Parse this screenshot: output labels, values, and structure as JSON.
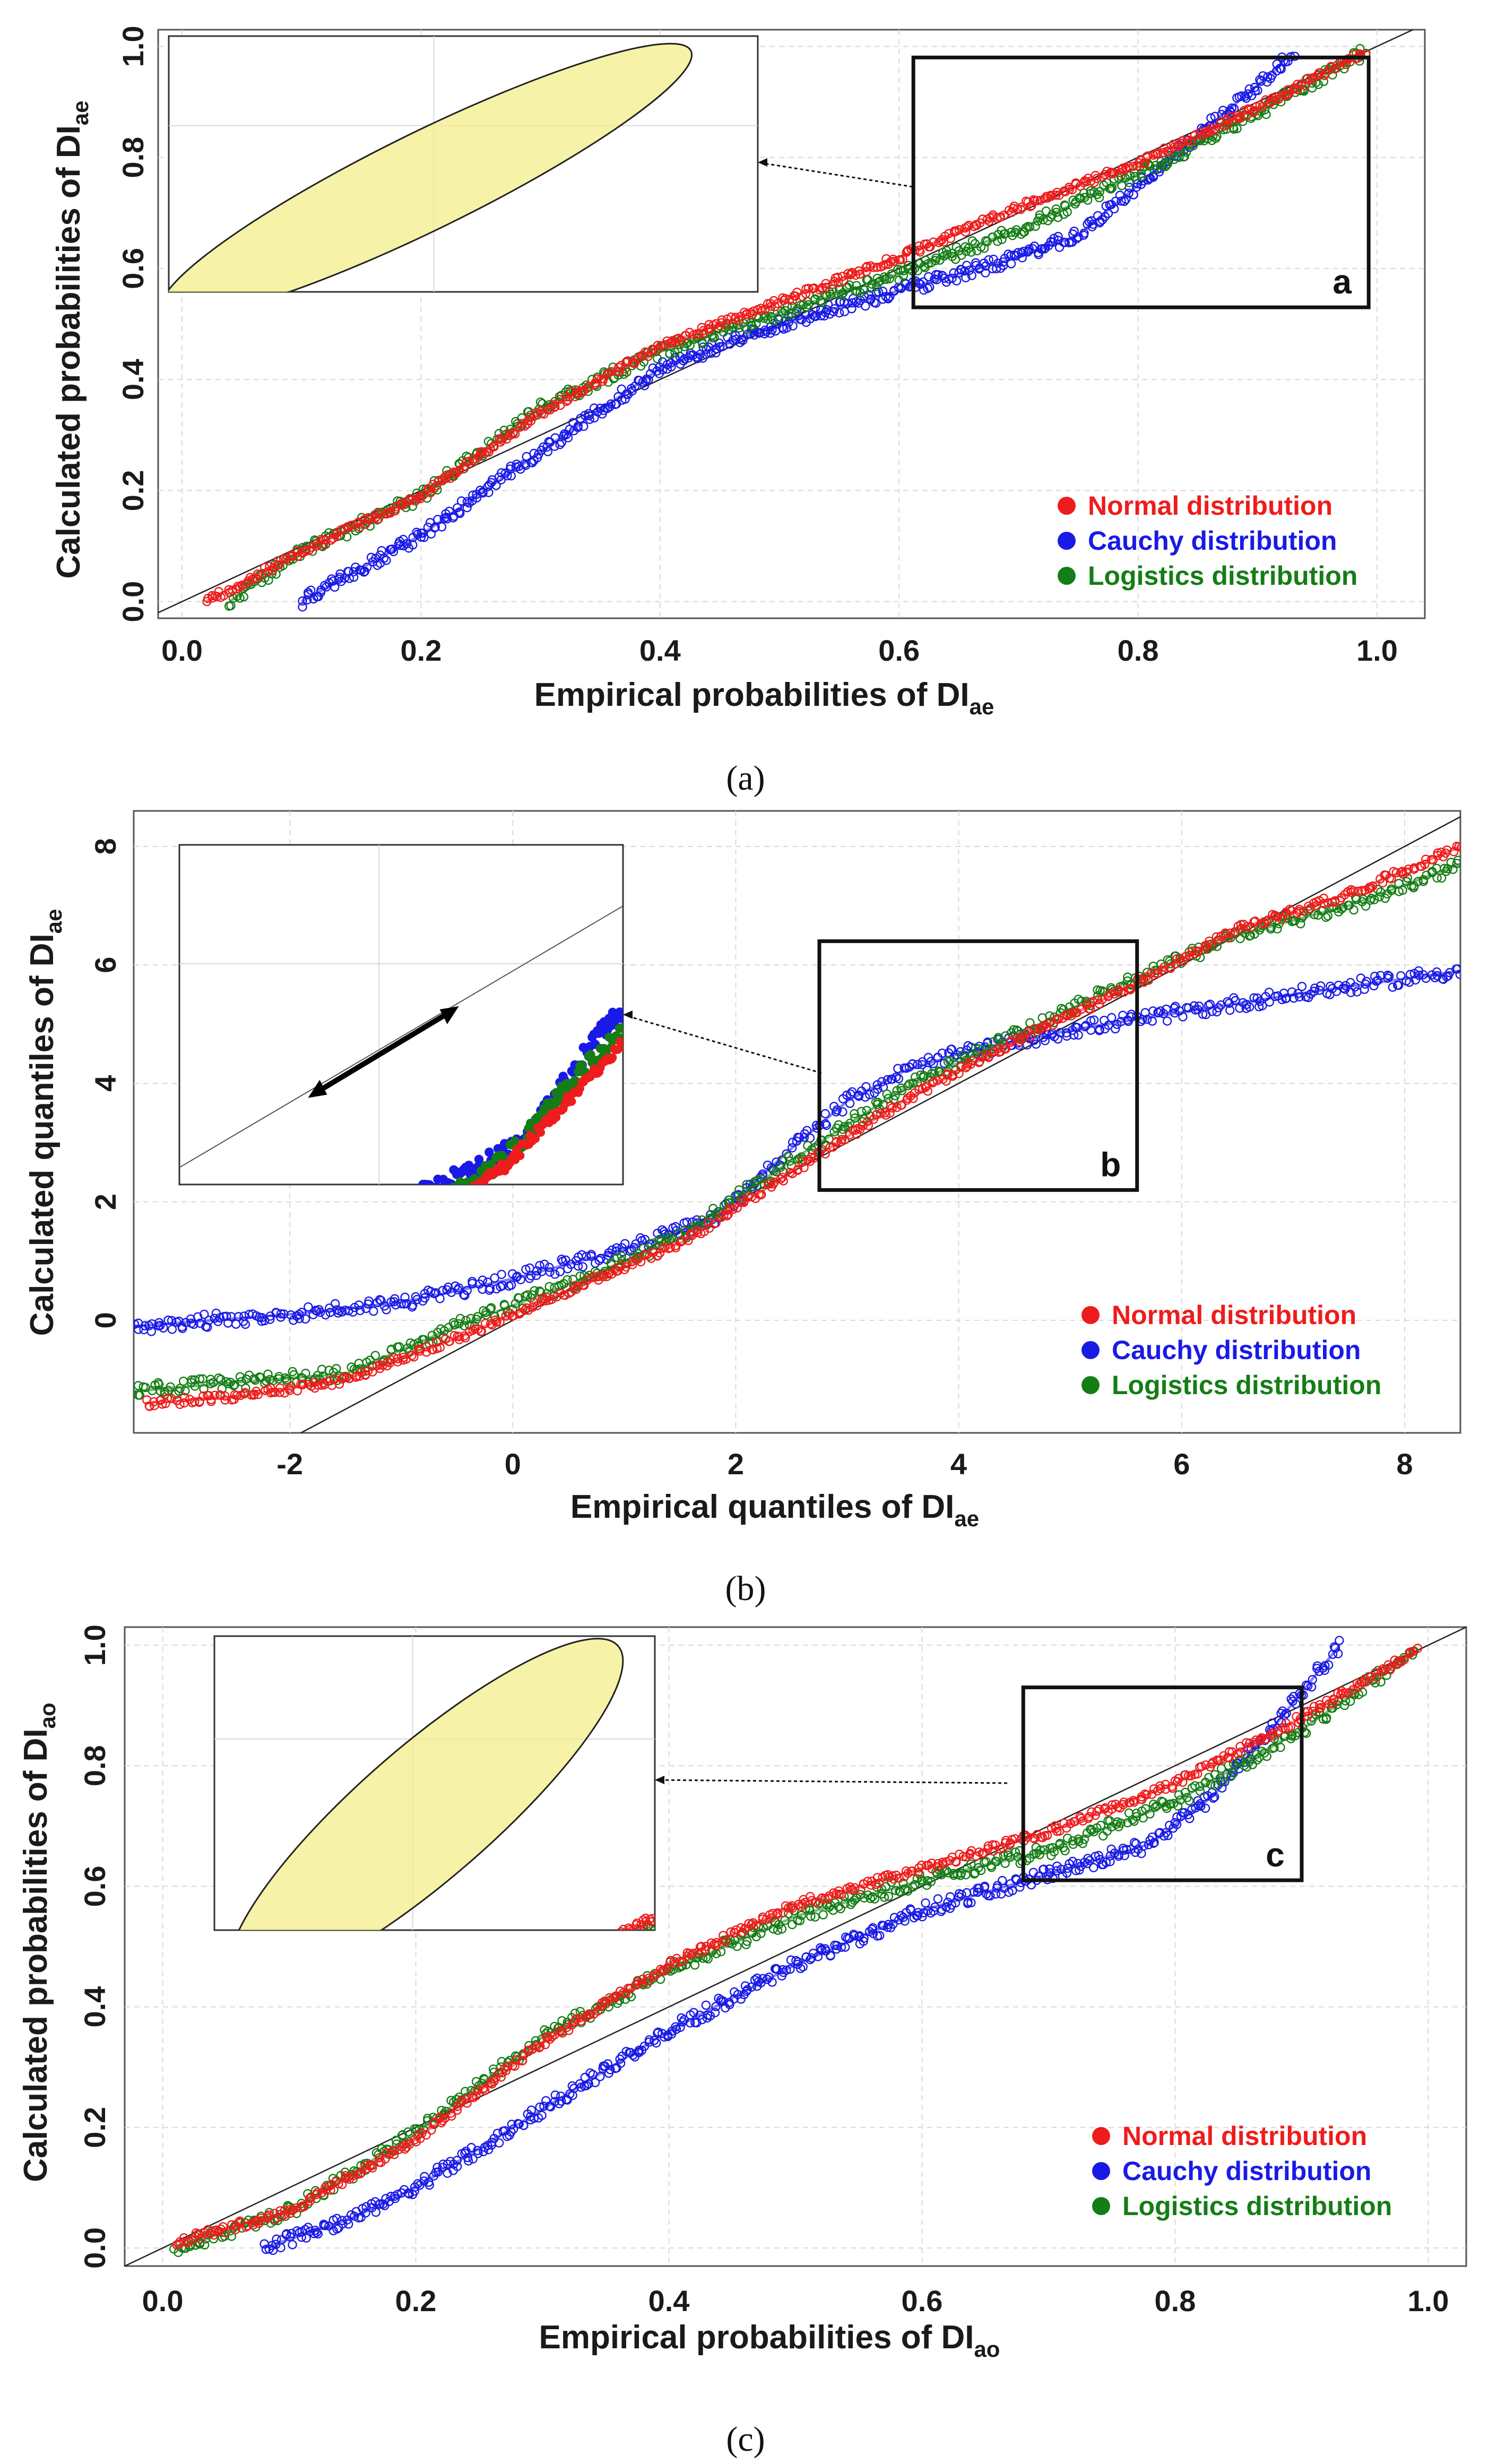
{
  "colors": {
    "normal": "#ee1c1c",
    "cauchy": "#1a1ae6",
    "logistics": "#157d15",
    "ellipse": "#f3ee8a",
    "grid": "#d9d9d9"
  },
  "chart_data": [
    {
      "type": "scatter",
      "panel": "(a)",
      "xlabel_main": "Empirical probabilities of DI",
      "xlabel_sub": "ae",
      "ylabel_main": "Calculated probabilities of DI",
      "ylabel_sub": "ae",
      "xlim": [
        -0.02,
        1.04
      ],
      "ylim": [
        -0.03,
        1.03
      ],
      "xticks": [
        0.0,
        0.2,
        0.4,
        0.6,
        0.8,
        1.0
      ],
      "xtick_labels": [
        "0.0",
        "0.2",
        "0.4",
        "0.6",
        "0.8",
        "1.0"
      ],
      "yticks": [
        0.0,
        0.2,
        0.4,
        0.6,
        0.8,
        1.0
      ],
      "ytick_labels": [
        "0.0",
        "0.2",
        "0.4",
        "0.6",
        "0.8",
        "1.0"
      ],
      "reference_line": "y = x",
      "box_label": "a",
      "box_data": {
        "x0": 0.612,
        "x1": 0.993,
        "y0": 0.53,
        "y1": 0.98
      },
      "legend": [
        "Normal distribution",
        "Cauchy distribution",
        "Logistics distribution"
      ],
      "legend_position": "bottom-right",
      "series": [
        {
          "name": "Normal distribution",
          "key": "normal",
          "x": [
            0.02,
            0.1,
            0.2,
            0.3,
            0.4,
            0.5,
            0.6,
            0.7,
            0.8,
            0.9,
            0.99
          ],
          "y": [
            0.0,
            0.09,
            0.19,
            0.34,
            0.46,
            0.54,
            0.62,
            0.71,
            0.79,
            0.89,
            0.99
          ]
        },
        {
          "name": "Cauchy distribution",
          "key": "cauchy",
          "x": [
            0.1,
            0.15,
            0.2,
            0.3,
            0.4,
            0.5,
            0.6,
            0.7,
            0.75,
            0.8,
            0.85,
            0.9,
            0.93
          ],
          "y": [
            0.0,
            0.06,
            0.12,
            0.27,
            0.42,
            0.5,
            0.56,
            0.62,
            0.66,
            0.75,
            0.84,
            0.93,
            0.99
          ]
        },
        {
          "name": "Logistics distribution",
          "key": "logistics",
          "x": [
            0.04,
            0.1,
            0.2,
            0.3,
            0.4,
            0.5,
            0.6,
            0.7,
            0.8,
            0.9,
            0.99
          ],
          "y": [
            0.0,
            0.09,
            0.19,
            0.35,
            0.45,
            0.52,
            0.59,
            0.67,
            0.77,
            0.88,
            0.99
          ]
        }
      ]
    },
    {
      "type": "scatter",
      "panel": "(b)",
      "xlabel_main": "Empirical quantiles of DI",
      "xlabel_sub": "ae",
      "ylabel_main": "Calculated quantiles of DI",
      "ylabel_sub": "ae",
      "xlim": [
        -3.4,
        8.5
      ],
      "ylim": [
        -1.9,
        8.6
      ],
      "xticks": [
        -2,
        0,
        2,
        4,
        6,
        8
      ],
      "xtick_labels": [
        "-2",
        "0",
        "2",
        "4",
        "6",
        "8"
      ],
      "yticks": [
        0,
        2,
        4,
        6,
        8
      ],
      "ytick_labels": [
        "0",
        "2",
        "4",
        "6",
        "8"
      ],
      "reference_line": "y = x",
      "box_label": "b",
      "box_data": {
        "x0": 2.75,
        "x1": 5.6,
        "y0": 2.2,
        "y1": 6.4
      },
      "legend": [
        "Normal distribution",
        "Cauchy distribution",
        "Logistics distribution"
      ],
      "legend_position": "bottom-right",
      "series": [
        {
          "name": "Normal distribution",
          "key": "normal",
          "x": [
            -3.3,
            -2.5,
            -1.5,
            -0.5,
            0.5,
            1.5,
            2.5,
            3.5,
            4.5,
            5.5,
            6.5,
            7.5,
            8.5
          ],
          "y": [
            -1.4,
            -1.3,
            -1.0,
            -0.3,
            0.5,
            1.3,
            2.5,
            3.7,
            4.7,
            5.6,
            6.6,
            7.2,
            8.0
          ]
        },
        {
          "name": "Cauchy distribution",
          "key": "cauchy",
          "x": [
            -3.4,
            -2,
            -1,
            0,
            1,
            1.8,
            2.5,
            3.0,
            3.5,
            4.0,
            4.5,
            5.0,
            6.0,
            7.0,
            8.5
          ],
          "y": [
            -0.1,
            0.1,
            0.3,
            0.7,
            1.2,
            1.7,
            2.9,
            3.7,
            4.2,
            4.5,
            4.7,
            4.9,
            5.2,
            5.5,
            5.9
          ]
        },
        {
          "name": "Logistics distribution",
          "key": "logistics",
          "x": [
            -3.4,
            -2.5,
            -1.5,
            -0.5,
            0.5,
            1.5,
            2.5,
            3.5,
            4.5,
            5.5,
            6.5,
            7.5,
            8.5
          ],
          "y": [
            -1.2,
            -1.05,
            -0.9,
            -0.1,
            0.6,
            1.4,
            2.7,
            3.9,
            4.8,
            5.7,
            6.5,
            7.0,
            7.7
          ]
        }
      ]
    },
    {
      "type": "scatter",
      "panel": "(c)",
      "xlabel_main": "Empirical probabilities of DI",
      "xlabel_sub": "ao",
      "ylabel_main": "Calculated probabilities of DI",
      "ylabel_sub": "ao",
      "xlim": [
        -0.03,
        1.03
      ],
      "ylim": [
        -0.03,
        1.03
      ],
      "xticks": [
        0.0,
        0.2,
        0.4,
        0.6,
        0.8,
        1.0
      ],
      "xtick_labels": [
        "0.0",
        "0.2",
        "0.4",
        "0.6",
        "0.8",
        "1.0"
      ],
      "yticks": [
        0.0,
        0.2,
        0.4,
        0.6,
        0.8,
        1.0
      ],
      "ytick_labels": [
        "0.0",
        "0.2",
        "0.4",
        "0.6",
        "0.8",
        "1.0"
      ],
      "reference_line": "y = x",
      "box_label": "c",
      "box_data": {
        "x0": 0.68,
        "x1": 0.9,
        "y0": 0.61,
        "y1": 0.93
      },
      "legend": [
        "Normal distribution",
        "Cauchy distribution",
        "Logistics distribution"
      ],
      "legend_position": "bottom-right",
      "series": [
        {
          "name": "Normal distribution",
          "key": "normal",
          "x": [
            0.01,
            0.1,
            0.2,
            0.3,
            0.4,
            0.5,
            0.6,
            0.7,
            0.8,
            0.9,
            0.99
          ],
          "y": [
            0.01,
            0.06,
            0.18,
            0.34,
            0.47,
            0.57,
            0.63,
            0.69,
            0.77,
            0.88,
            0.99
          ]
        },
        {
          "name": "Cauchy distribution",
          "key": "cauchy",
          "x": [
            0.08,
            0.15,
            0.2,
            0.3,
            0.4,
            0.5,
            0.6,
            0.7,
            0.78,
            0.83,
            0.88,
            0.93
          ],
          "y": [
            0.0,
            0.05,
            0.1,
            0.23,
            0.36,
            0.47,
            0.56,
            0.62,
            0.67,
            0.75,
            0.87,
            1.0
          ]
        },
        {
          "name": "Logistics distribution",
          "key": "logistics",
          "x": [
            0.01,
            0.1,
            0.2,
            0.3,
            0.4,
            0.5,
            0.6,
            0.7,
            0.8,
            0.9,
            0.99
          ],
          "y": [
            0.0,
            0.06,
            0.19,
            0.35,
            0.46,
            0.55,
            0.61,
            0.66,
            0.74,
            0.86,
            0.99
          ]
        }
      ]
    }
  ],
  "captions": [
    "(a)",
    "(b)",
    "(c)"
  ]
}
